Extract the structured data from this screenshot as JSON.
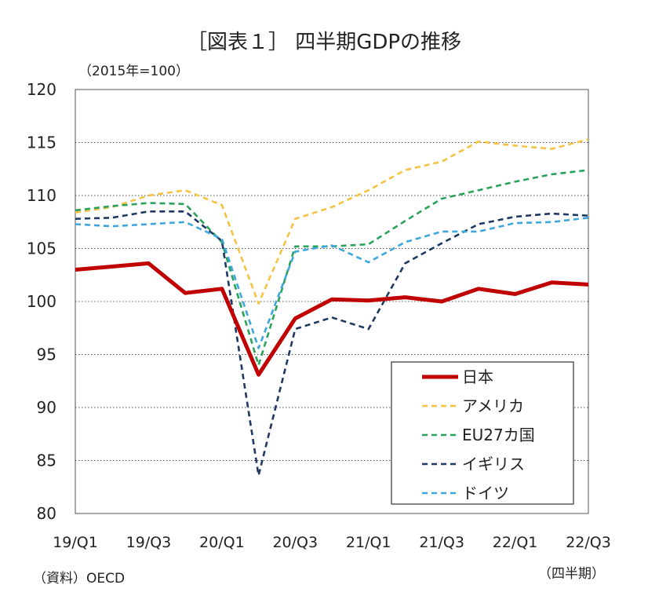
{
  "chart_data": {
    "type": "line",
    "title": "［図表１］ 四半期GDPの推移",
    "unit_label": "（2015年=100）",
    "source": "（資料）OECD",
    "x_unit_label": "（四半期）",
    "x": [
      "19/Q1",
      "19/Q2",
      "19/Q3",
      "19/Q4",
      "20/Q1",
      "20/Q2",
      "20/Q3",
      "20/Q4",
      "21/Q1",
      "21/Q2",
      "21/Q3",
      "21/Q4",
      "22/Q1",
      "22/Q2",
      "22/Q3"
    ],
    "xtick_labels": [
      "19/Q1",
      "19/Q3",
      "20/Q1",
      "20/Q3",
      "21/Q1",
      "21/Q3",
      "22/Q1",
      "22/Q3"
    ],
    "yticks": [
      80,
      85,
      90,
      95,
      100,
      105,
      110,
      115,
      120
    ],
    "ylim": [
      80,
      120
    ],
    "grid": "horizontal dotted",
    "legend_position": "bottom-right",
    "series": [
      {
        "name": "日本",
        "color": "#c00000",
        "style": "solid",
        "values": [
          103.0,
          103.3,
          103.6,
          100.8,
          101.2,
          93.1,
          98.4,
          100.2,
          100.1,
          100.4,
          100.0,
          101.2,
          100.7,
          101.8,
          101.6
        ]
      },
      {
        "name": "アメリカ",
        "color": "#f5c242",
        "style": "dashed",
        "values": [
          108.4,
          108.9,
          110.0,
          110.5,
          109.1,
          99.8,
          107.8,
          108.9,
          110.5,
          112.4,
          113.2,
          115.1,
          114.7,
          114.4,
          115.3
        ]
      },
      {
        "name": "EU27カ国",
        "color": "#2aa35a",
        "style": "dashed",
        "values": [
          108.6,
          109.0,
          109.3,
          109.2,
          105.6,
          94.0,
          105.2,
          105.2,
          105.4,
          107.6,
          109.7,
          110.5,
          111.3,
          112.0,
          112.4
        ]
      },
      {
        "name": "イギリス",
        "color": "#1f3864",
        "style": "dashed",
        "values": [
          107.8,
          107.9,
          108.5,
          108.5,
          105.7,
          83.6,
          97.4,
          98.5,
          97.4,
          103.6,
          105.5,
          107.3,
          108.0,
          108.3,
          108.1
        ]
      },
      {
        "name": "ドイツ",
        "color": "#3ea6de",
        "style": "dashed",
        "values": [
          107.3,
          107.1,
          107.3,
          107.5,
          105.9,
          95.6,
          104.7,
          105.3,
          103.7,
          105.6,
          106.6,
          106.6,
          107.4,
          107.5,
          107.9
        ]
      }
    ]
  }
}
